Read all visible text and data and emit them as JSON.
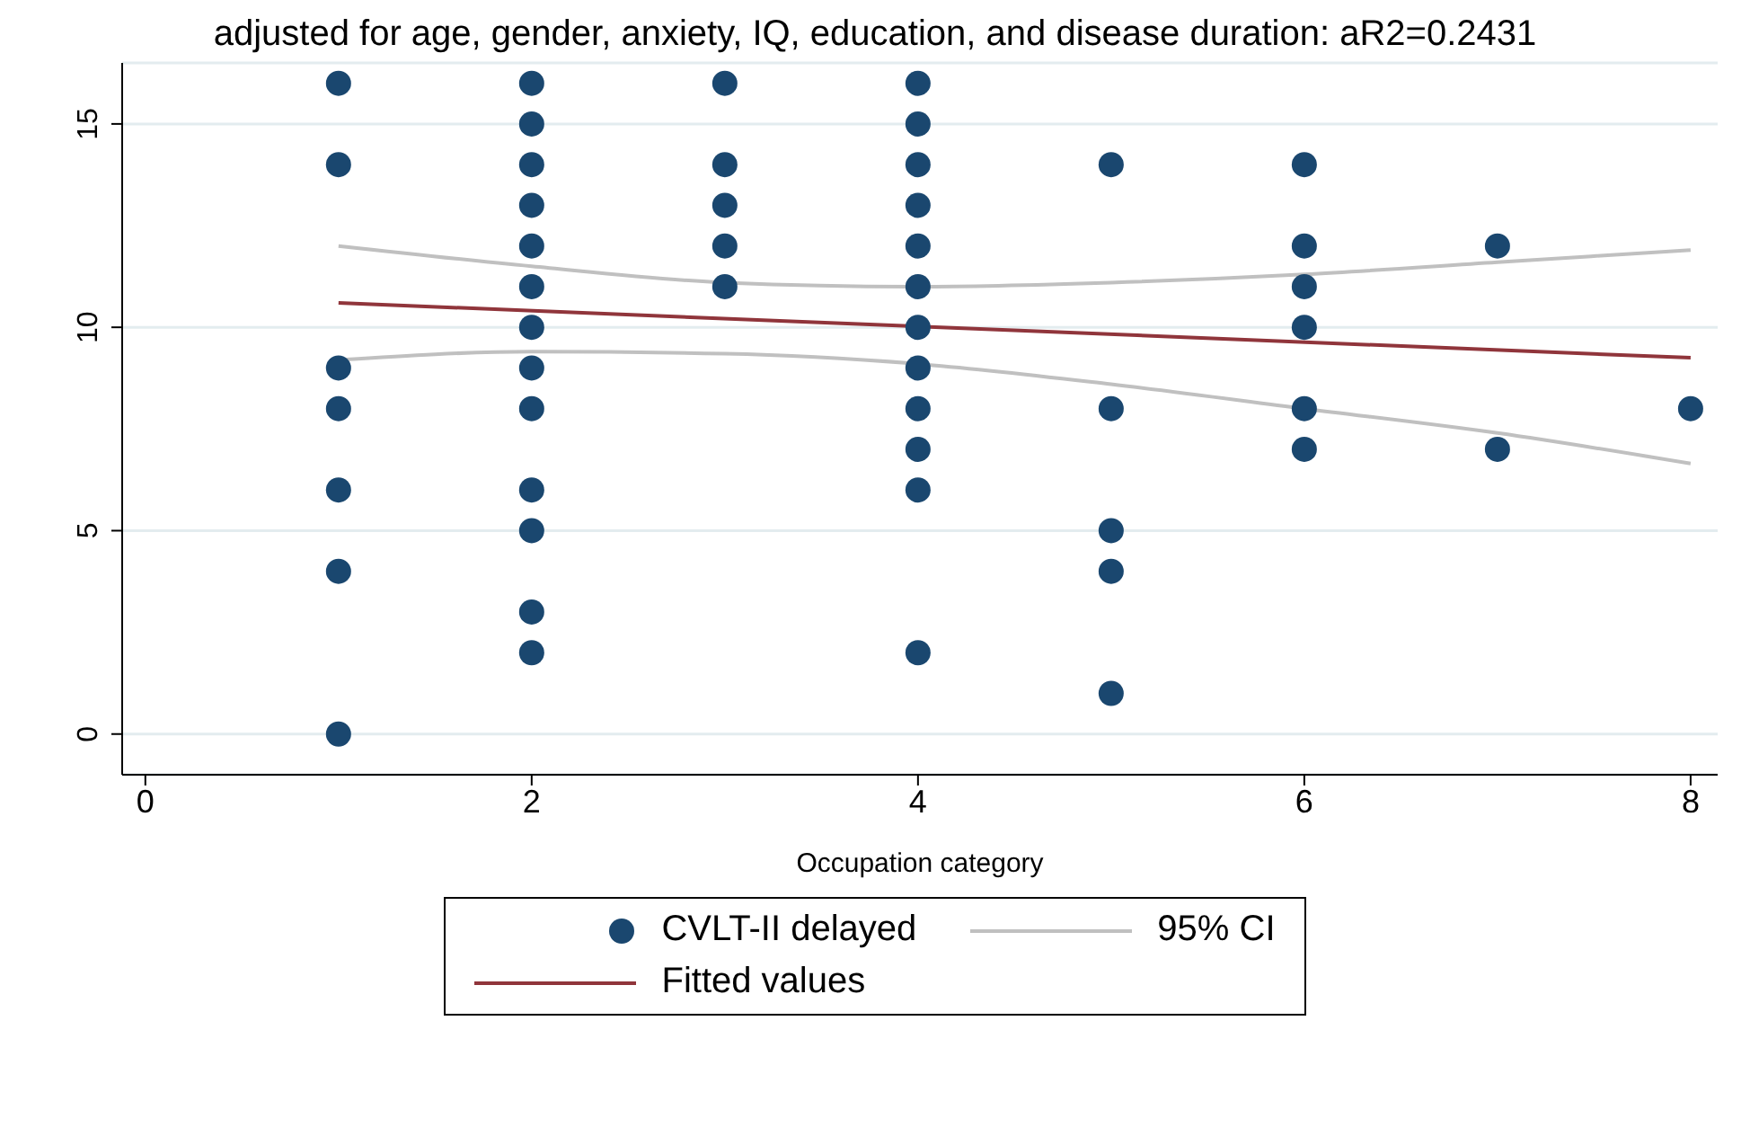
{
  "chart_data": {
    "type": "scatter",
    "title": "adjusted for age, gender, anxiety, IQ, education, and disease duration: aR2=0.2431",
    "xlabel": "Occupation category",
    "xlim": [
      -0.12,
      8.14
    ],
    "xticks": [
      0,
      2,
      4,
      6,
      8
    ],
    "ylim": [
      -1,
      16.5
    ],
    "yticks": [
      0,
      5,
      10,
      15
    ],
    "grid": "y",
    "legend": "bottom",
    "series": [
      {
        "name": "CVLT-II delayed",
        "marker": "circle",
        "color": "#1a476f",
        "x": [
          1,
          1,
          1,
          1,
          1,
          1,
          1,
          2,
          2,
          2,
          2,
          2,
          2,
          2,
          2,
          2,
          2,
          2,
          2,
          2,
          3,
          3,
          3,
          3,
          3,
          4,
          4,
          4,
          4,
          4,
          4,
          4,
          4,
          4,
          4,
          4,
          4,
          5,
          5,
          5,
          5,
          5,
          6,
          6,
          6,
          6,
          6,
          6,
          7,
          7,
          8
        ],
        "values": [
          16,
          14,
          9,
          8,
          6,
          4,
          0,
          16,
          15,
          14,
          13,
          12,
          11,
          10,
          9,
          8,
          6,
          5,
          3,
          2,
          16,
          14,
          13,
          12,
          11,
          16,
          15,
          14,
          13,
          12,
          11,
          10,
          9,
          8,
          7,
          6,
          2,
          14,
          8,
          5,
          4,
          1,
          14,
          12,
          11,
          10,
          8,
          7,
          12,
          7,
          8
        ]
      },
      {
        "name": "95% CI",
        "type": "line",
        "color": "#c0c0c0",
        "x": [
          1,
          2,
          3,
          4,
          5,
          6,
          7,
          8
        ],
        "values": [
          12.0,
          11.5,
          11.1,
          11.0,
          11.1,
          11.3,
          11.6,
          11.9
        ]
      },
      {
        "type": "line",
        "color": "#c0c0c0",
        "x": [
          1,
          2,
          3,
          4,
          5,
          6,
          7,
          8
        ],
        "values": [
          9.2,
          9.4,
          9.35,
          9.1,
          8.6,
          8.0,
          7.4,
          6.65
        ]
      },
      {
        "name": "Fitted values",
        "type": "line",
        "color": "#90353b",
        "x": [
          1,
          8
        ],
        "values": [
          10.6,
          9.25
        ]
      }
    ]
  }
}
